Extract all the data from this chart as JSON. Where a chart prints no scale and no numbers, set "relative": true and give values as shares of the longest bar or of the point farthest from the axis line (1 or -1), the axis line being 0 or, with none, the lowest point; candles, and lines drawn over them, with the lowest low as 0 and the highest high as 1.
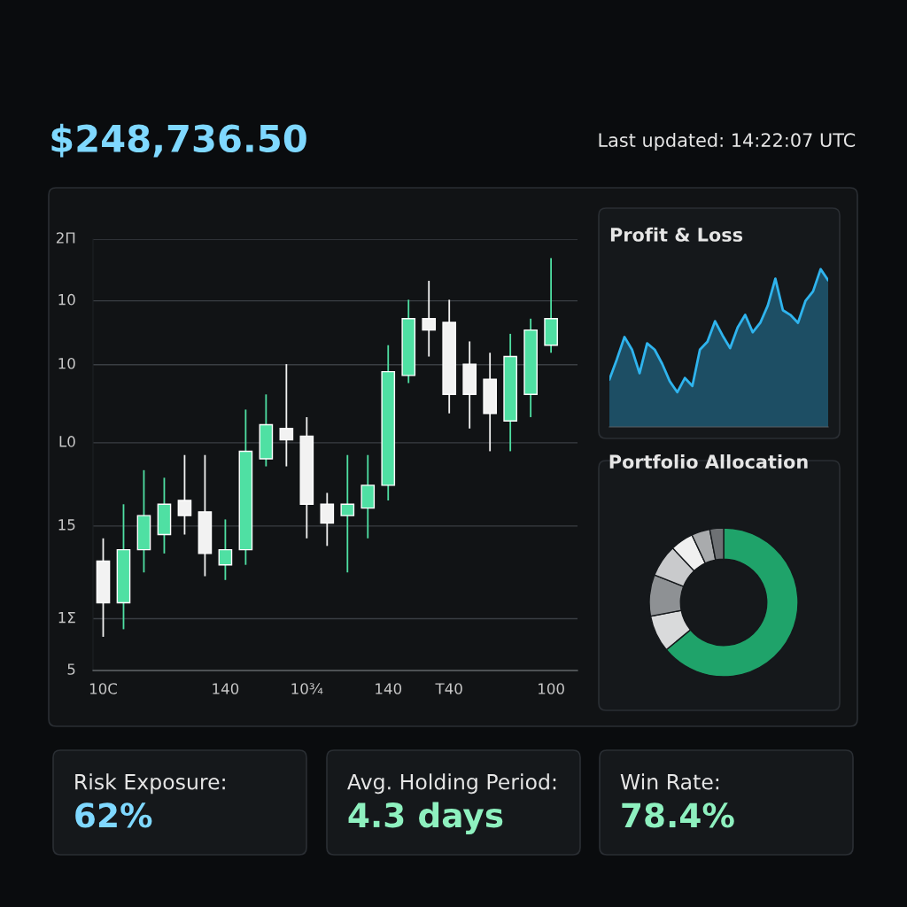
{
  "chart_data": [
    {
      "type": "other",
      "annotations": [
        "$248,736.50",
        "Last updated: 14:22:07 UTC"
      ]
    },
    {
      "type": "candlestick",
      "relative": true,
      "categories": [
        "10C",
        null,
        null,
        null,
        null,
        null,
        "140",
        null,
        null,
        null,
        "10¾",
        null,
        null,
        null,
        "140",
        null,
        null,
        "T40",
        null,
        null,
        null,
        null,
        "100"
      ],
      "ohlc": [
        [
          0.2,
          0.26,
          0,
          0.09
        ],
        [
          0.09,
          0.35,
          0.02,
          0.23
        ],
        [
          0.23,
          0.44,
          0.17,
          0.32
        ],
        [
          0.27,
          0.42,
          0.22,
          0.35
        ],
        [
          0.36,
          0.48,
          0.27,
          0.32
        ],
        [
          0.33,
          0.48,
          0.16,
          0.22
        ],
        [
          0.19,
          0.31,
          0.15,
          0.23
        ],
        [
          0.23,
          0.6,
          0.19,
          0.49
        ],
        [
          0.47,
          0.64,
          0.45,
          0.56
        ],
        [
          0.55,
          0.72,
          0.45,
          0.52
        ],
        [
          0.53,
          0.58,
          0.26,
          0.35
        ],
        [
          0.35,
          0.38,
          0.24,
          0.3
        ],
        [
          0.32,
          0.48,
          0.17,
          0.35
        ],
        [
          0.34,
          0.48,
          0.26,
          0.4
        ],
        [
          0.4,
          0.77,
          0.36,
          0.7
        ],
        [
          0.69,
          0.89,
          0.67,
          0.84
        ],
        [
          0.84,
          0.94,
          0.74,
          0.81
        ],
        [
          0.83,
          0.89,
          0.59,
          0.64
        ],
        [
          0.72,
          0.78,
          0.55,
          0.64
        ],
        [
          0.68,
          0.75,
          0.49,
          0.59
        ],
        [
          0.57,
          0.8,
          0.49,
          0.74
        ],
        [
          0.64,
          0.84,
          0.58,
          0.81
        ],
        [
          0.77,
          1.0,
          0.75,
          0.84
        ]
      ],
      "colors": [
        "#f2f2f2",
        "#4fe0a3",
        "#4fe0a3",
        "#4fe0a3",
        "#f2f2f2",
        "#f2f2f2",
        "#4fe0a3",
        "#4fe0a3",
        "#4fe0a3",
        "#f2f2f2",
        "#f2f2f2",
        "#f2f2f2",
        "#4fe0a3",
        "#4fe0a3",
        "#4fe0a3",
        "#4fe0a3",
        "#f2f2f2",
        "#f2f2f2",
        "#f2f2f2",
        "#f2f2f2",
        "#4fe0a3",
        "#4fe0a3",
        "#4fe0a3"
      ],
      "annotations": [
        "5",
        "1Σ",
        "15",
        "L0",
        "10",
        "10",
        "2Π"
      ],
      "grid": "y"
    },
    {
      "type": "area",
      "title": "Profit & Loss",
      "relative": true,
      "color": "#2fb4ee",
      "categories": [
        null,
        null,
        null,
        null,
        null,
        null,
        null,
        null,
        null,
        null,
        null,
        null,
        null,
        null,
        null,
        null,
        null,
        null,
        null,
        null,
        null,
        null,
        null,
        null,
        null,
        null,
        null,
        null,
        null,
        null
      ],
      "values": [
        0.3,
        0.43,
        0.57,
        0.49,
        0.34,
        0.53,
        0.49,
        0.4,
        0.29,
        0.22,
        0.31,
        0.26,
        0.49,
        0.54,
        0.67,
        0.58,
        0.5,
        0.63,
        0.71,
        0.6,
        0.66,
        0.77,
        0.94,
        0.74,
        0.71,
        0.66,
        0.8,
        0.86,
        1.0,
        0.93
      ]
    },
    {
      "type": "donut",
      "title": "Portfolio Allocation",
      "categories": [
        null,
        null,
        null,
        null,
        null,
        null,
        null
      ],
      "values": [
        64,
        8,
        9,
        7,
        5,
        4,
        3
      ],
      "colors": [
        "#1fa36a",
        "#d9dadb",
        "#8e9194",
        "#c9cacc",
        "#f0f0f0",
        "#a9abad",
        "#6e7174"
      ]
    },
    {
      "type": "other",
      "title": "Risk Exposure:",
      "annotations": [
        "62%"
      ],
      "color": "#7fd8ff"
    },
    {
      "type": "other",
      "title": "Avg. Holding Period:",
      "annotations": [
        "4.3 days"
      ],
      "color": "#8ef0bf"
    },
    {
      "type": "other",
      "title": "Win Rate:",
      "annotations": [
        "78.4%"
      ],
      "color": "#8ef0bf"
    }
  ]
}
